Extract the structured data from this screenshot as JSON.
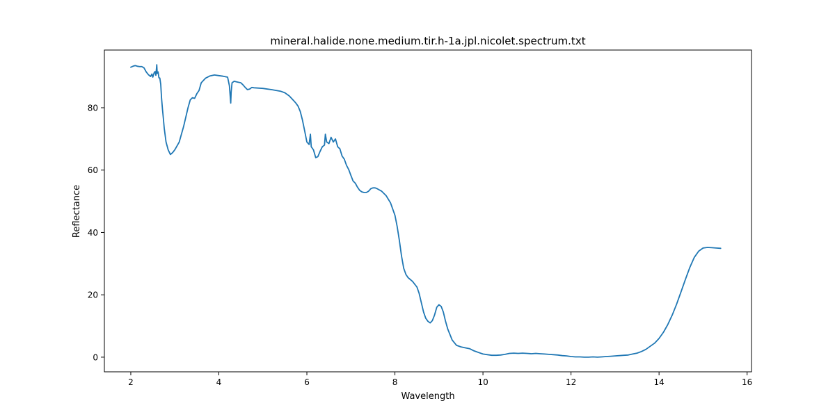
{
  "chart_data": {
    "type": "line",
    "title": "mineral.halide.none.medium.tir.h-1a.jpl.nicolet.spectrum.txt",
    "xlabel": "Wavelength",
    "ylabel": "Reflectance",
    "xlim": [
      1.4,
      16.1
    ],
    "ylim": [
      -4.7,
      98.5
    ],
    "xticks": [
      2,
      4,
      6,
      8,
      10,
      12,
      14,
      16
    ],
    "yticks": [
      0,
      20,
      40,
      60,
      80
    ],
    "grid": false,
    "legend": "none",
    "series": [
      {
        "color": "#1f77b4",
        "points": [
          [
            2.0,
            93.0
          ],
          [
            2.05,
            93.3
          ],
          [
            2.1,
            93.5
          ],
          [
            2.15,
            93.3
          ],
          [
            2.2,
            93.2
          ],
          [
            2.25,
            93.2
          ],
          [
            2.3,
            92.8
          ],
          [
            2.35,
            91.5
          ],
          [
            2.4,
            90.6
          ],
          [
            2.45,
            90.0
          ],
          [
            2.48,
            90.8
          ],
          [
            2.5,
            89.8
          ],
          [
            2.53,
            91.2
          ],
          [
            2.55,
            91.6
          ],
          [
            2.57,
            90.4
          ],
          [
            2.59,
            93.8
          ],
          [
            2.6,
            91.0
          ],
          [
            2.62,
            91.5
          ],
          [
            2.64,
            89.6
          ],
          [
            2.66,
            89.5
          ],
          [
            2.68,
            87.5
          ],
          [
            2.7,
            83.0
          ],
          [
            2.72,
            79.5
          ],
          [
            2.74,
            76.5
          ],
          [
            2.76,
            73.5
          ],
          [
            2.8,
            69.0
          ],
          [
            2.85,
            66.5
          ],
          [
            2.9,
            65.0
          ],
          [
            2.95,
            65.6
          ],
          [
            3.0,
            66.5
          ],
          [
            3.1,
            69.0
          ],
          [
            3.2,
            74.0
          ],
          [
            3.3,
            80.0
          ],
          [
            3.35,
            82.5
          ],
          [
            3.4,
            83.2
          ],
          [
            3.45,
            83.0
          ],
          [
            3.5,
            84.5
          ],
          [
            3.55,
            85.5
          ],
          [
            3.6,
            88.0
          ],
          [
            3.7,
            89.5
          ],
          [
            3.8,
            90.2
          ],
          [
            3.9,
            90.5
          ],
          [
            4.0,
            90.3
          ],
          [
            4.1,
            90.1
          ],
          [
            4.2,
            89.8
          ],
          [
            4.24,
            87.0
          ],
          [
            4.26,
            83.5
          ],
          [
            4.27,
            81.5
          ],
          [
            4.28,
            85.0
          ],
          [
            4.3,
            88.0
          ],
          [
            4.35,
            88.5
          ],
          [
            4.4,
            88.3
          ],
          [
            4.5,
            88.0
          ],
          [
            4.55,
            87.3
          ],
          [
            4.6,
            86.5
          ],
          [
            4.65,
            85.8
          ],
          [
            4.7,
            86.0
          ],
          [
            4.75,
            86.5
          ],
          [
            4.8,
            86.4
          ],
          [
            5.0,
            86.2
          ],
          [
            5.2,
            85.8
          ],
          [
            5.4,
            85.3
          ],
          [
            5.5,
            84.8
          ],
          [
            5.6,
            83.8
          ],
          [
            5.7,
            82.3
          ],
          [
            5.75,
            81.5
          ],
          [
            5.8,
            80.5
          ],
          [
            5.85,
            78.8
          ],
          [
            5.9,
            76.0
          ],
          [
            5.95,
            72.5
          ],
          [
            6.0,
            69.0
          ],
          [
            6.05,
            68.2
          ],
          [
            6.08,
            71.5
          ],
          [
            6.1,
            67.5
          ],
          [
            6.15,
            66.5
          ],
          [
            6.2,
            64.0
          ],
          [
            6.25,
            64.3
          ],
          [
            6.3,
            66.0
          ],
          [
            6.35,
            67.5
          ],
          [
            6.4,
            68.0
          ],
          [
            6.42,
            71.5
          ],
          [
            6.45,
            69.0
          ],
          [
            6.5,
            68.5
          ],
          [
            6.55,
            70.5
          ],
          [
            6.6,
            69.0
          ],
          [
            6.65,
            70.0
          ],
          [
            6.7,
            67.5
          ],
          [
            6.75,
            66.8
          ],
          [
            6.8,
            64.5
          ],
          [
            6.85,
            63.5
          ],
          [
            6.9,
            61.5
          ],
          [
            6.95,
            60.2
          ],
          [
            7.0,
            58.3
          ],
          [
            7.05,
            56.5
          ],
          [
            7.1,
            55.8
          ],
          [
            7.15,
            54.5
          ],
          [
            7.2,
            53.5
          ],
          [
            7.25,
            53.0
          ],
          [
            7.3,
            52.8
          ],
          [
            7.35,
            52.8
          ],
          [
            7.4,
            53.2
          ],
          [
            7.45,
            54.0
          ],
          [
            7.5,
            54.3
          ],
          [
            7.55,
            54.3
          ],
          [
            7.6,
            54.0
          ],
          [
            7.7,
            53.2
          ],
          [
            7.8,
            51.8
          ],
          [
            7.9,
            49.5
          ],
          [
            8.0,
            45.5
          ],
          [
            8.05,
            42.0
          ],
          [
            8.1,
            37.5
          ],
          [
            8.15,
            32.5
          ],
          [
            8.2,
            28.5
          ],
          [
            8.25,
            26.5
          ],
          [
            8.3,
            25.5
          ],
          [
            8.4,
            24.3
          ],
          [
            8.5,
            22.5
          ],
          [
            8.55,
            20.5
          ],
          [
            8.6,
            17.5
          ],
          [
            8.65,
            14.5
          ],
          [
            8.7,
            12.5
          ],
          [
            8.75,
            11.5
          ],
          [
            8.8,
            11.0
          ],
          [
            8.85,
            11.7
          ],
          [
            8.9,
            13.5
          ],
          [
            8.95,
            16.0
          ],
          [
            9.0,
            16.8
          ],
          [
            9.05,
            16.3
          ],
          [
            9.1,
            14.5
          ],
          [
            9.15,
            11.5
          ],
          [
            9.2,
            9.0
          ],
          [
            9.3,
            5.5
          ],
          [
            9.4,
            3.8
          ],
          [
            9.5,
            3.3
          ],
          [
            9.6,
            3.0
          ],
          [
            9.7,
            2.7
          ],
          [
            9.8,
            2.0
          ],
          [
            9.9,
            1.5
          ],
          [
            10.0,
            1.0
          ],
          [
            10.1,
            0.8
          ],
          [
            10.2,
            0.6
          ],
          [
            10.3,
            0.6
          ],
          [
            10.4,
            0.7
          ],
          [
            10.5,
            0.9
          ],
          [
            10.6,
            1.2
          ],
          [
            10.7,
            1.3
          ],
          [
            10.8,
            1.2
          ],
          [
            10.9,
            1.3
          ],
          [
            11.0,
            1.2
          ],
          [
            11.1,
            1.1
          ],
          [
            11.2,
            1.2
          ],
          [
            11.3,
            1.1
          ],
          [
            11.4,
            1.0
          ],
          [
            11.5,
            0.9
          ],
          [
            11.6,
            0.8
          ],
          [
            11.7,
            0.7
          ],
          [
            11.8,
            0.5
          ],
          [
            11.9,
            0.4
          ],
          [
            12.0,
            0.2
          ],
          [
            12.1,
            0.1
          ],
          [
            12.2,
            0.1
          ],
          [
            12.3,
            0.0
          ],
          [
            12.4,
            0.0
          ],
          [
            12.5,
            0.1
          ],
          [
            12.6,
            0.0
          ],
          [
            12.7,
            0.1
          ],
          [
            12.8,
            0.2
          ],
          [
            12.9,
            0.3
          ],
          [
            13.0,
            0.4
          ],
          [
            13.1,
            0.5
          ],
          [
            13.2,
            0.6
          ],
          [
            13.3,
            0.7
          ],
          [
            13.4,
            1.0
          ],
          [
            13.5,
            1.3
          ],
          [
            13.6,
            1.8
          ],
          [
            13.7,
            2.5
          ],
          [
            13.8,
            3.5
          ],
          [
            13.9,
            4.5
          ],
          [
            14.0,
            6.0
          ],
          [
            14.1,
            8.0
          ],
          [
            14.2,
            10.5
          ],
          [
            14.3,
            13.5
          ],
          [
            14.4,
            17.0
          ],
          [
            14.5,
            21.0
          ],
          [
            14.6,
            25.0
          ],
          [
            14.7,
            28.8
          ],
          [
            14.8,
            32.0
          ],
          [
            14.9,
            34.0
          ],
          [
            15.0,
            35.0
          ],
          [
            15.1,
            35.2
          ],
          [
            15.2,
            35.1
          ],
          [
            15.3,
            35.0
          ],
          [
            15.4,
            34.9
          ]
        ]
      }
    ]
  }
}
